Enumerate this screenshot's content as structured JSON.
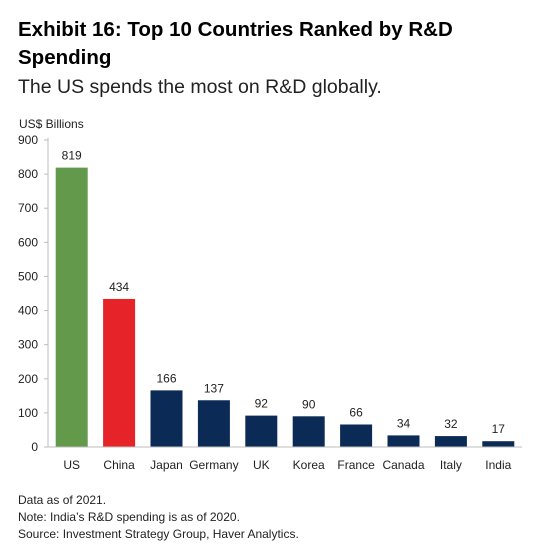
{
  "header": {
    "title": "Exhibit 16: Top 10 Countries Ranked by R&D Spending",
    "subtitle": "The US spends the most on R&D globally."
  },
  "notes": [
    "Data as of 2021.",
    "Note: India’s R&D spending is as of 2020.",
    "Source: Investment Strategy Group, Haver Analytics."
  ],
  "chart_data": {
    "type": "bar",
    "ylabel": "US$ Billions",
    "xlabel": "",
    "ylim": [
      0,
      900
    ],
    "yticks": [
      0,
      100,
      200,
      300,
      400,
      500,
      600,
      700,
      800,
      900
    ],
    "categories": [
      "US",
      "China",
      "Japan",
      "Germany",
      "UK",
      "Korea",
      "France",
      "Canada",
      "Italy",
      "India"
    ],
    "values": [
      819,
      434,
      166,
      137,
      92,
      90,
      66,
      34,
      32,
      17
    ],
    "colors": [
      "#62994a",
      "#e62329",
      "#0b2a55",
      "#0b2a55",
      "#0b2a55",
      "#0b2a55",
      "#0b2a55",
      "#0b2a55",
      "#0b2a55",
      "#0b2a55"
    ],
    "data_labels": true,
    "grid": false
  }
}
